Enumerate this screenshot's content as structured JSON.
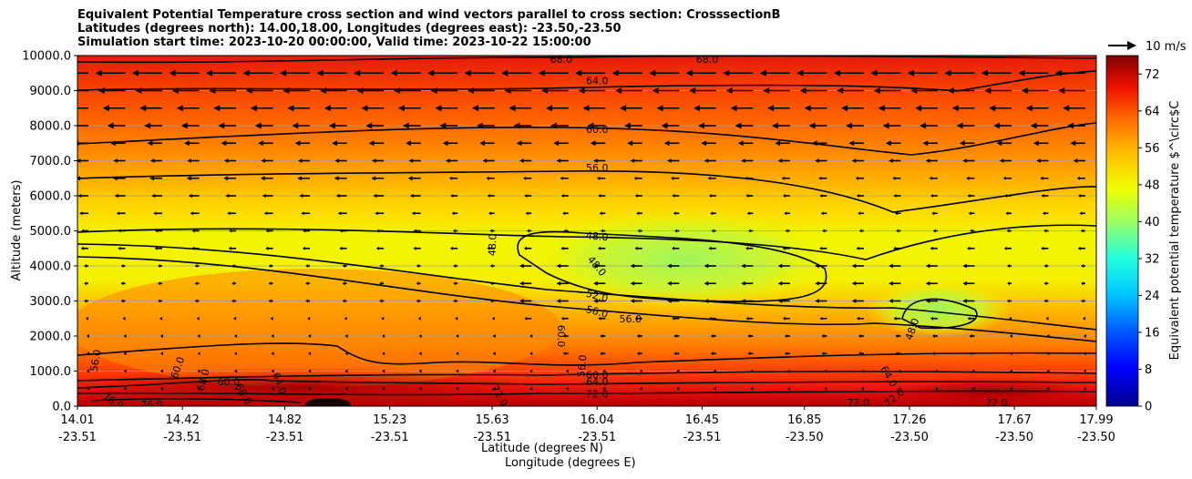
{
  "header": {
    "title_line1": "Equivalent Potential Temperature cross section and wind vectors parallel to cross section: CrosssectionB",
    "title_line2": "Latitudes (degrees north): 14.00,18.00, Longitudes (degrees east): -23.50,-23.50",
    "title_line3": "Simulation start time: 2023-10-20 00:00:00, Valid time: 2023-10-22 15:00:00"
  },
  "chart_data": {
    "type": "contourf",
    "ylabel": "Altitude (meters)",
    "xlabel_lat": "Latitude (degrees N)",
    "xlabel_lon": "Longitude (degrees E)",
    "ylim": [
      0,
      10000
    ],
    "yticks": [
      "0.0",
      "1000.0",
      "2000.0",
      "3000.0",
      "4000.0",
      "5000.0",
      "6000.0",
      "7000.0",
      "8000.0",
      "9000.0",
      "10000.0"
    ],
    "xticks_lat": [
      "14.01",
      "14.42",
      "14.82",
      "15.23",
      "15.63",
      "16.04",
      "16.45",
      "16.85",
      "17.26",
      "17.67",
      "17.99"
    ],
    "xticks_lon": [
      "-23.51",
      "-23.51",
      "-23.51",
      "-23.51",
      "-23.51",
      "-23.51",
      "-23.51",
      "-23.50",
      "-23.50",
      "-23.50",
      "-23.50"
    ],
    "grid": true,
    "colorbar": {
      "label": "Equivalent potential temperature $^\\circ$C",
      "range": [
        0,
        76
      ],
      "ticks": [
        "0",
        "8",
        "16",
        "24",
        "32",
        "40",
        "48",
        "56",
        "64",
        "72"
      ],
      "colormap": "jet"
    },
    "wind_key": {
      "label": "10 m/s",
      "value": 10
    },
    "contour_lines": [
      {
        "level": "48.0",
        "approx_altitude_m": 4800
      },
      {
        "level": "52.0",
        "approx_altitude_m": 3000
      },
      {
        "level": "56.0",
        "approx_altitude_m": 6800
      },
      {
        "level": "60.0",
        "approx_altitude_m": 7900
      },
      {
        "level": "64.0",
        "approx_altitude_m": 9300
      },
      {
        "level": "68.0",
        "approx_altitude_m": 9950
      },
      {
        "level": "72.0",
        "approx_altitude_m": 300
      },
      {
        "level": "76.0",
        "approx_altitude_m": 50
      }
    ],
    "contour_labels": [
      {
        "text": "68.0",
        "x": 15.9,
        "y": 9900,
        "rot": 0
      },
      {
        "text": "68.0",
        "x": 16.47,
        "y": 9900,
        "rot": 0
      },
      {
        "text": "64.0",
        "x": 16.04,
        "y": 9280,
        "rot": 0
      },
      {
        "text": "60.0",
        "x": 16.04,
        "y": 7900,
        "rot": 0
      },
      {
        "text": "56.0",
        "x": 16.04,
        "y": 6800,
        "rot": 0
      },
      {
        "text": "48.0",
        "x": 15.63,
        "y": 4600,
        "rot": -88
      },
      {
        "text": "48.0",
        "x": 16.04,
        "y": 4850,
        "rot": 5
      },
      {
        "text": "48.0",
        "x": 16.04,
        "y": 4000,
        "rot": 50
      },
      {
        "text": "52.0",
        "x": 16.04,
        "y": 3150,
        "rot": 15
      },
      {
        "text": "56.0",
        "x": 16.04,
        "y": 2700,
        "rot": 15
      },
      {
        "text": "56.0",
        "x": 16.17,
        "y": 2500,
        "rot": 0
      },
      {
        "text": "60.0",
        "x": 15.9,
        "y": 2000,
        "rot": 90
      },
      {
        "text": "56.0",
        "x": 15.98,
        "y": 1150,
        "rot": -85
      },
      {
        "text": "60.0",
        "x": 16.04,
        "y": 900,
        "rot": 0
      },
      {
        "text": "64.0",
        "x": 16.04,
        "y": 700,
        "rot": 0
      },
      {
        "text": "72.0",
        "x": 16.04,
        "y": 350,
        "rot": 0
      },
      {
        "text": "56.0",
        "x": 14.08,
        "y": 1300,
        "rot": -80
      },
      {
        "text": "60.0",
        "x": 14.4,
        "y": 1100,
        "rot": -70
      },
      {
        "text": "68.0",
        "x": 14.5,
        "y": 750,
        "rot": -75
      },
      {
        "text": "60.0",
        "x": 14.6,
        "y": 700,
        "rot": 0
      },
      {
        "text": "64.0",
        "x": 14.8,
        "y": 650,
        "rot": 70
      },
      {
        "text": "68.0",
        "x": 14.66,
        "y": 350,
        "rot": 60
      },
      {
        "text": "76.0",
        "x": 14.3,
        "y": 50,
        "rot": 0
      },
      {
        "text": "76.0",
        "x": 14.15,
        "y": 150,
        "rot": 30
      },
      {
        "text": "72.0",
        "x": 15.66,
        "y": 300,
        "rot": 60
      },
      {
        "text": "64.0",
        "x": 17.18,
        "y": 850,
        "rot": 60
      },
      {
        "text": "72.0",
        "x": 17.2,
        "y": 250,
        "rot": -40
      },
      {
        "text": "72.0",
        "x": 17.06,
        "y": 100,
        "rot": 0
      },
      {
        "text": "72.0",
        "x": 17.6,
        "y": 100,
        "rot": 0
      },
      {
        "text": "48.0",
        "x": 17.27,
        "y": 2200,
        "rot": -70
      }
    ],
    "wind": {
      "levels_m": [
        9500,
        9000,
        8500,
        8000,
        7500,
        7000,
        6500,
        6000,
        5500,
        5000,
        4500,
        4000,
        3500,
        3000,
        2500,
        2000,
        1500,
        1000,
        500
      ],
      "u_profile_ms": [
        -10.0,
        -9.0,
        -7.5,
        -6.0,
        -5.0,
        -4.0,
        -3.5,
        -3.0,
        -2.5,
        -2.0,
        -2.5,
        -2.5,
        -2.5,
        -2.5,
        -1.5,
        -1.0,
        -1.0,
        -0.5,
        -0.5
      ]
    }
  }
}
